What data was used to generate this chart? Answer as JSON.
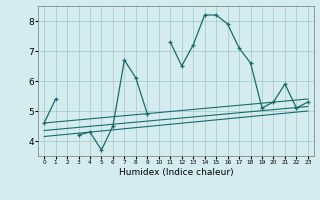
{
  "title": "",
  "xlabel": "Humidex (Indice chaleur)",
  "ylabel": "",
  "bg_color": "#d4ecee",
  "grid_color": "#aacdd2",
  "line_color": "#1a6b6b",
  "xlim": [
    -0.5,
    23.5
  ],
  "ylim": [
    3.5,
    8.5
  ],
  "yticks": [
    4,
    5,
    6,
    7,
    8
  ],
  "xticks": [
    0,
    1,
    2,
    3,
    4,
    5,
    6,
    7,
    8,
    9,
    10,
    11,
    12,
    13,
    14,
    15,
    16,
    17,
    18,
    19,
    20,
    21,
    22,
    23
  ],
  "main_x": [
    0,
    1,
    2,
    3,
    4,
    5,
    6,
    7,
    8,
    9,
    10,
    11,
    12,
    13,
    14,
    15,
    16,
    17,
    18,
    19,
    20,
    21,
    22,
    23
  ],
  "main_y": [
    4.6,
    5.4,
    null,
    4.2,
    4.3,
    3.7,
    4.5,
    6.7,
    6.1,
    4.9,
    null,
    7.3,
    6.5,
    7.2,
    8.2,
    8.2,
    7.9,
    7.1,
    6.6,
    5.1,
    5.3,
    5.9,
    5.1,
    5.3
  ],
  "trend1_x": [
    0,
    23
  ],
  "trend1_y": [
    4.6,
    5.4
  ],
  "trend2_x": [
    0,
    23
  ],
  "trend2_y": [
    4.35,
    5.15
  ],
  "trend3_x": [
    0,
    23
  ],
  "trend3_y": [
    4.15,
    5.0
  ]
}
